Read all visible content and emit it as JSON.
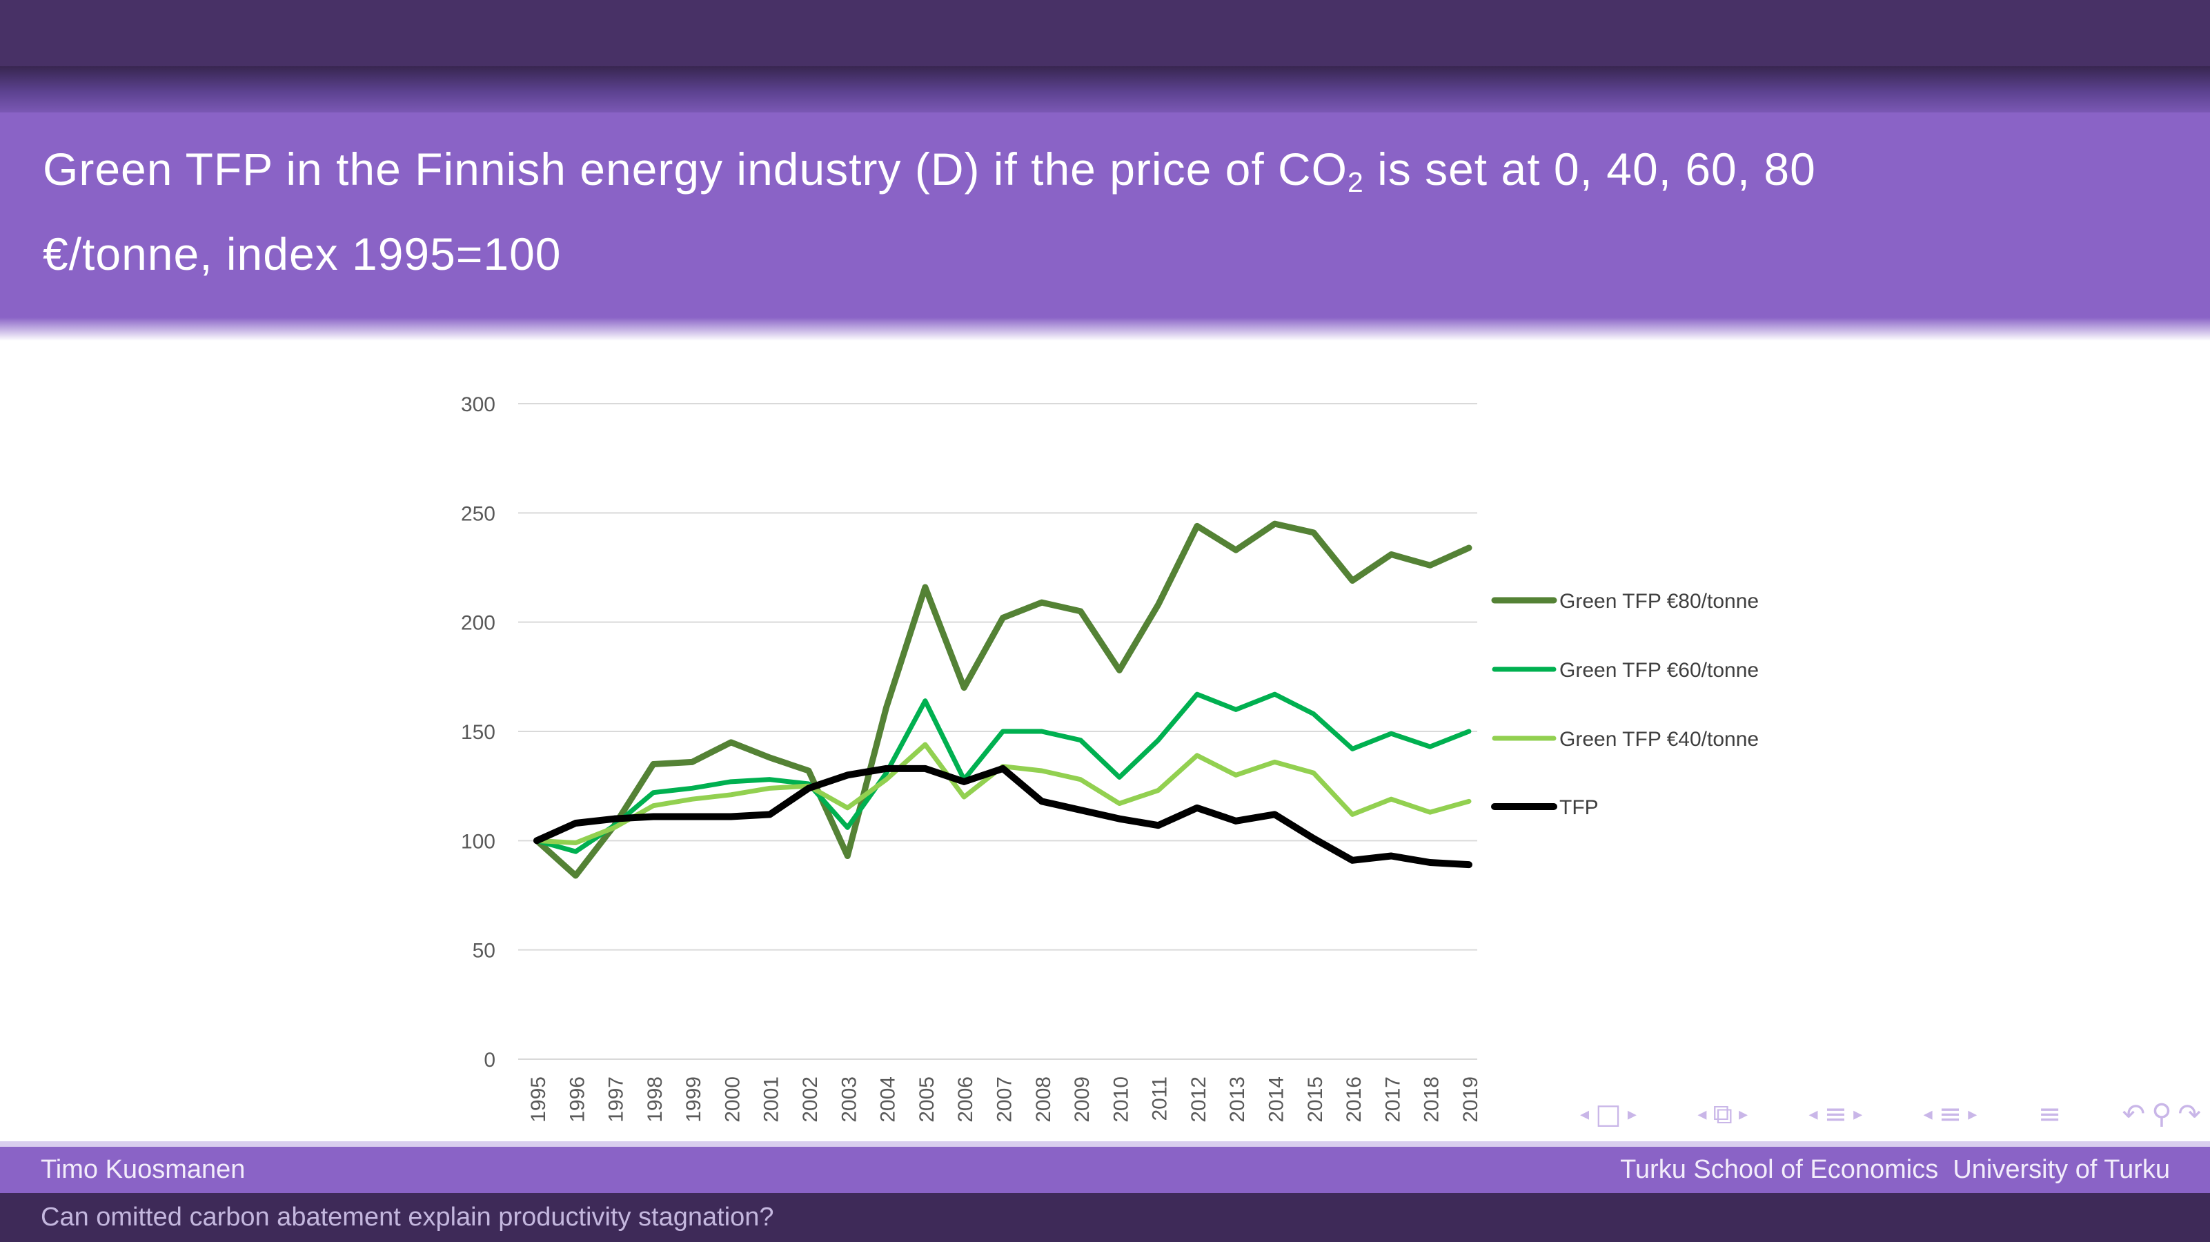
{
  "header": {
    "title_line1_pre": "Green TFP in the Finnish energy industry (D) if the price of CO",
    "title_co2_sub": "2",
    "title_line1_post": " is set at 0, 40, 60, 80",
    "title_line2": "€/tonne, index 1995=100"
  },
  "chart_data": {
    "type": "line",
    "title": "",
    "xlabel": "",
    "ylabel": "",
    "x": [
      1995,
      1996,
      1997,
      1998,
      1999,
      2000,
      2001,
      2002,
      2003,
      2004,
      2005,
      2006,
      2007,
      2008,
      2009,
      2010,
      2011,
      2012,
      2013,
      2014,
      2015,
      2016,
      2017,
      2018,
      2019
    ],
    "ylim": [
      0,
      300
    ],
    "ytick_step": 50,
    "grid": "horizontal-only",
    "grid_color": "#d9d9d9",
    "axis_text_color": "#595959",
    "legend_position": "right-middle",
    "legend_text_color": "#3f3f3f",
    "series": [
      {
        "name": "Green TFP €80/tonne",
        "color": "#548235",
        "values": [
          100,
          84,
          107,
          135,
          136,
          145,
          138,
          132,
          93,
          161,
          216,
          170,
          202,
          209,
          205,
          178,
          208,
          244,
          233,
          245,
          241,
          219,
          231,
          226,
          234
        ]
      },
      {
        "name": "Green TFP €60/tonne",
        "color": "#00B050",
        "values": [
          100,
          95,
          107,
          122,
          124,
          127,
          128,
          126,
          106,
          131,
          164,
          128,
          150,
          150,
          146,
          129,
          146,
          167,
          160,
          167,
          158,
          142,
          149,
          143,
          150
        ]
      },
      {
        "name": "Green TFP €40/tonne",
        "color": "#92D050",
        "values": [
          100,
          99,
          106,
          116,
          119,
          121,
          124,
          125,
          115,
          128,
          144,
          120,
          134,
          132,
          128,
          117,
          123,
          139,
          130,
          136,
          131,
          112,
          119,
          113,
          118
        ]
      },
      {
        "name": "TFP",
        "color": "#000000",
        "values": [
          100,
          108,
          110,
          111,
          111,
          111,
          112,
          124,
          130,
          133,
          133,
          127,
          133,
          118,
          114,
          110,
          107,
          115,
          109,
          112,
          101,
          91,
          93,
          90,
          89
        ]
      }
    ]
  },
  "navigation": {
    "symbol_groups": [
      [
        "◂",
        "□",
        "▸"
      ],
      [
        "◂",
        "⧉",
        "▸"
      ],
      [
        "◂",
        "≡",
        "▸"
      ],
      [
        "◂",
        "≡",
        "▸"
      ],
      [
        "≡"
      ],
      [
        "↶",
        "⚲",
        "↷"
      ]
    ]
  },
  "footer": {
    "author": "Timo Kuosmanen",
    "institute": "Turku School of Economics  University of Turku",
    "paper_title": "Can omitted carbon abatement explain productivity stagnation?"
  },
  "colors": {
    "top_bar": "#483166",
    "header_purple": "#8a63c6",
    "footer_dark": "#3e2a58",
    "nav_symbols": "#c9b6e8"
  }
}
